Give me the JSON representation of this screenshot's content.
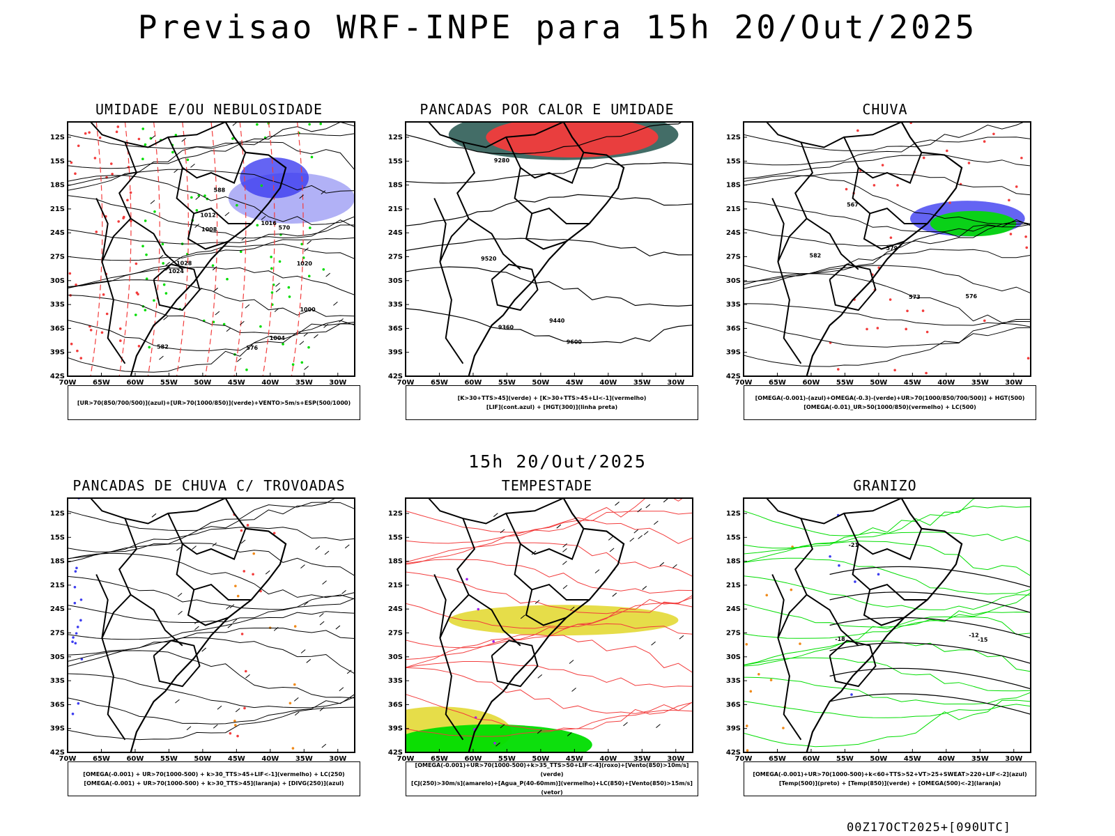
{
  "header": {
    "title": "Previsao WRF-INPE  para 15h 20/Out/2025"
  },
  "mid_date": "15h 20/Out/2025",
  "footer": "00Z17OCT2025+[090UTC]",
  "axes": {
    "lat_labels": [
      "12S",
      "15S",
      "18S",
      "21S",
      "24S",
      "27S",
      "30S",
      "33S",
      "36S",
      "39S",
      "42S"
    ],
    "lon_labels": [
      "70W",
      "65W",
      "60W",
      "55W",
      "50W",
      "45W",
      "40W",
      "35W",
      "30W"
    ]
  },
  "colors": {
    "blue_light": "#a9a9f5",
    "blue_dark": "#3d3df0",
    "green": "#00dd00",
    "red": "#f23c3c",
    "teal": "#2f5d57",
    "yellow": "#e3d935",
    "orange": "#f08a1a",
    "purple": "#a020f0",
    "black": "#000000"
  },
  "panels": [
    {
      "title": "UMIDADE E/OU NEBULOSIDADE",
      "legend": [
        "[UR>70(850/700/500)](azul)+[UR>70(1000/850)](verde)+VENTO>5m/s+ESP(500/1000)"
      ],
      "labels": [
        "1008",
        "1012",
        "1016",
        "1020",
        "1024",
        "1028",
        "570",
        "576",
        "582",
        "588",
        "1000",
        "1004"
      ]
    },
    {
      "title": "PANCADAS POR CALOR E UMIDADE",
      "legend": [
        "[K>30+TTS>45](verde) + [K>30+TTS>45+LI<-1](vermelho)",
        "[LIF](cont.azul) + [HGT(300)](linha preta)"
      ],
      "labels": [
        "9600",
        "9520",
        "9440",
        "9360",
        "9280"
      ]
    },
    {
      "title": "CHUVA",
      "legend": [
        "[OMEGA(-0.001)-(azul)+OMEGA(-0.3)-(verde)+UR>70(1000/850/700/500)] + HGT(500)",
        "[OMEGA(-0.01)_UR>50(1000/850)(vermelho) + LC(500)"
      ],
      "labels": [
        "576",
        "582",
        "567",
        "573",
        "579"
      ]
    },
    {
      "title": "PANCADAS DE CHUVA C/ TROVOADAS",
      "legend": [
        "[OMEGA(-0.001) + UR>70(1000-500) + k>30_TTS>45+LIF<-1](vermelho) + LC(250)",
        "[OMEGA(-0.001) + UR>70(1000-500) + k>30_TTS>45](laranja) + [DIVG(250)](azul)"
      ],
      "labels": []
    },
    {
      "title": "TEMPESTADE",
      "legend": [
        "[OMEGA(-0.001)+UR>70(1000-500)+k>35_TTS>50+LIF<-4](roxo)+[Vento(850)>10m/s](verde)",
        "[CJ(250)>30m/s](amarelo)+[Agua_P(40-60mm)](vermelho)+LC(850)+[Vento(850)>15m/s](vetor)"
      ],
      "labels": []
    },
    {
      "title": "GRANIZO",
      "legend": [
        "[OMEGA(-0.001)+UR>70(1000-500)+k<60+TTS>52+VT>25+SWEAT>220+LIF<-2](azul)",
        "[Temp(500)](preto) + [Temp(850)](verde) + [OMEGA(500)<-2](laranja)"
      ],
      "labels": [
        "-12",
        "-15",
        "-18",
        "-21"
      ]
    }
  ]
}
